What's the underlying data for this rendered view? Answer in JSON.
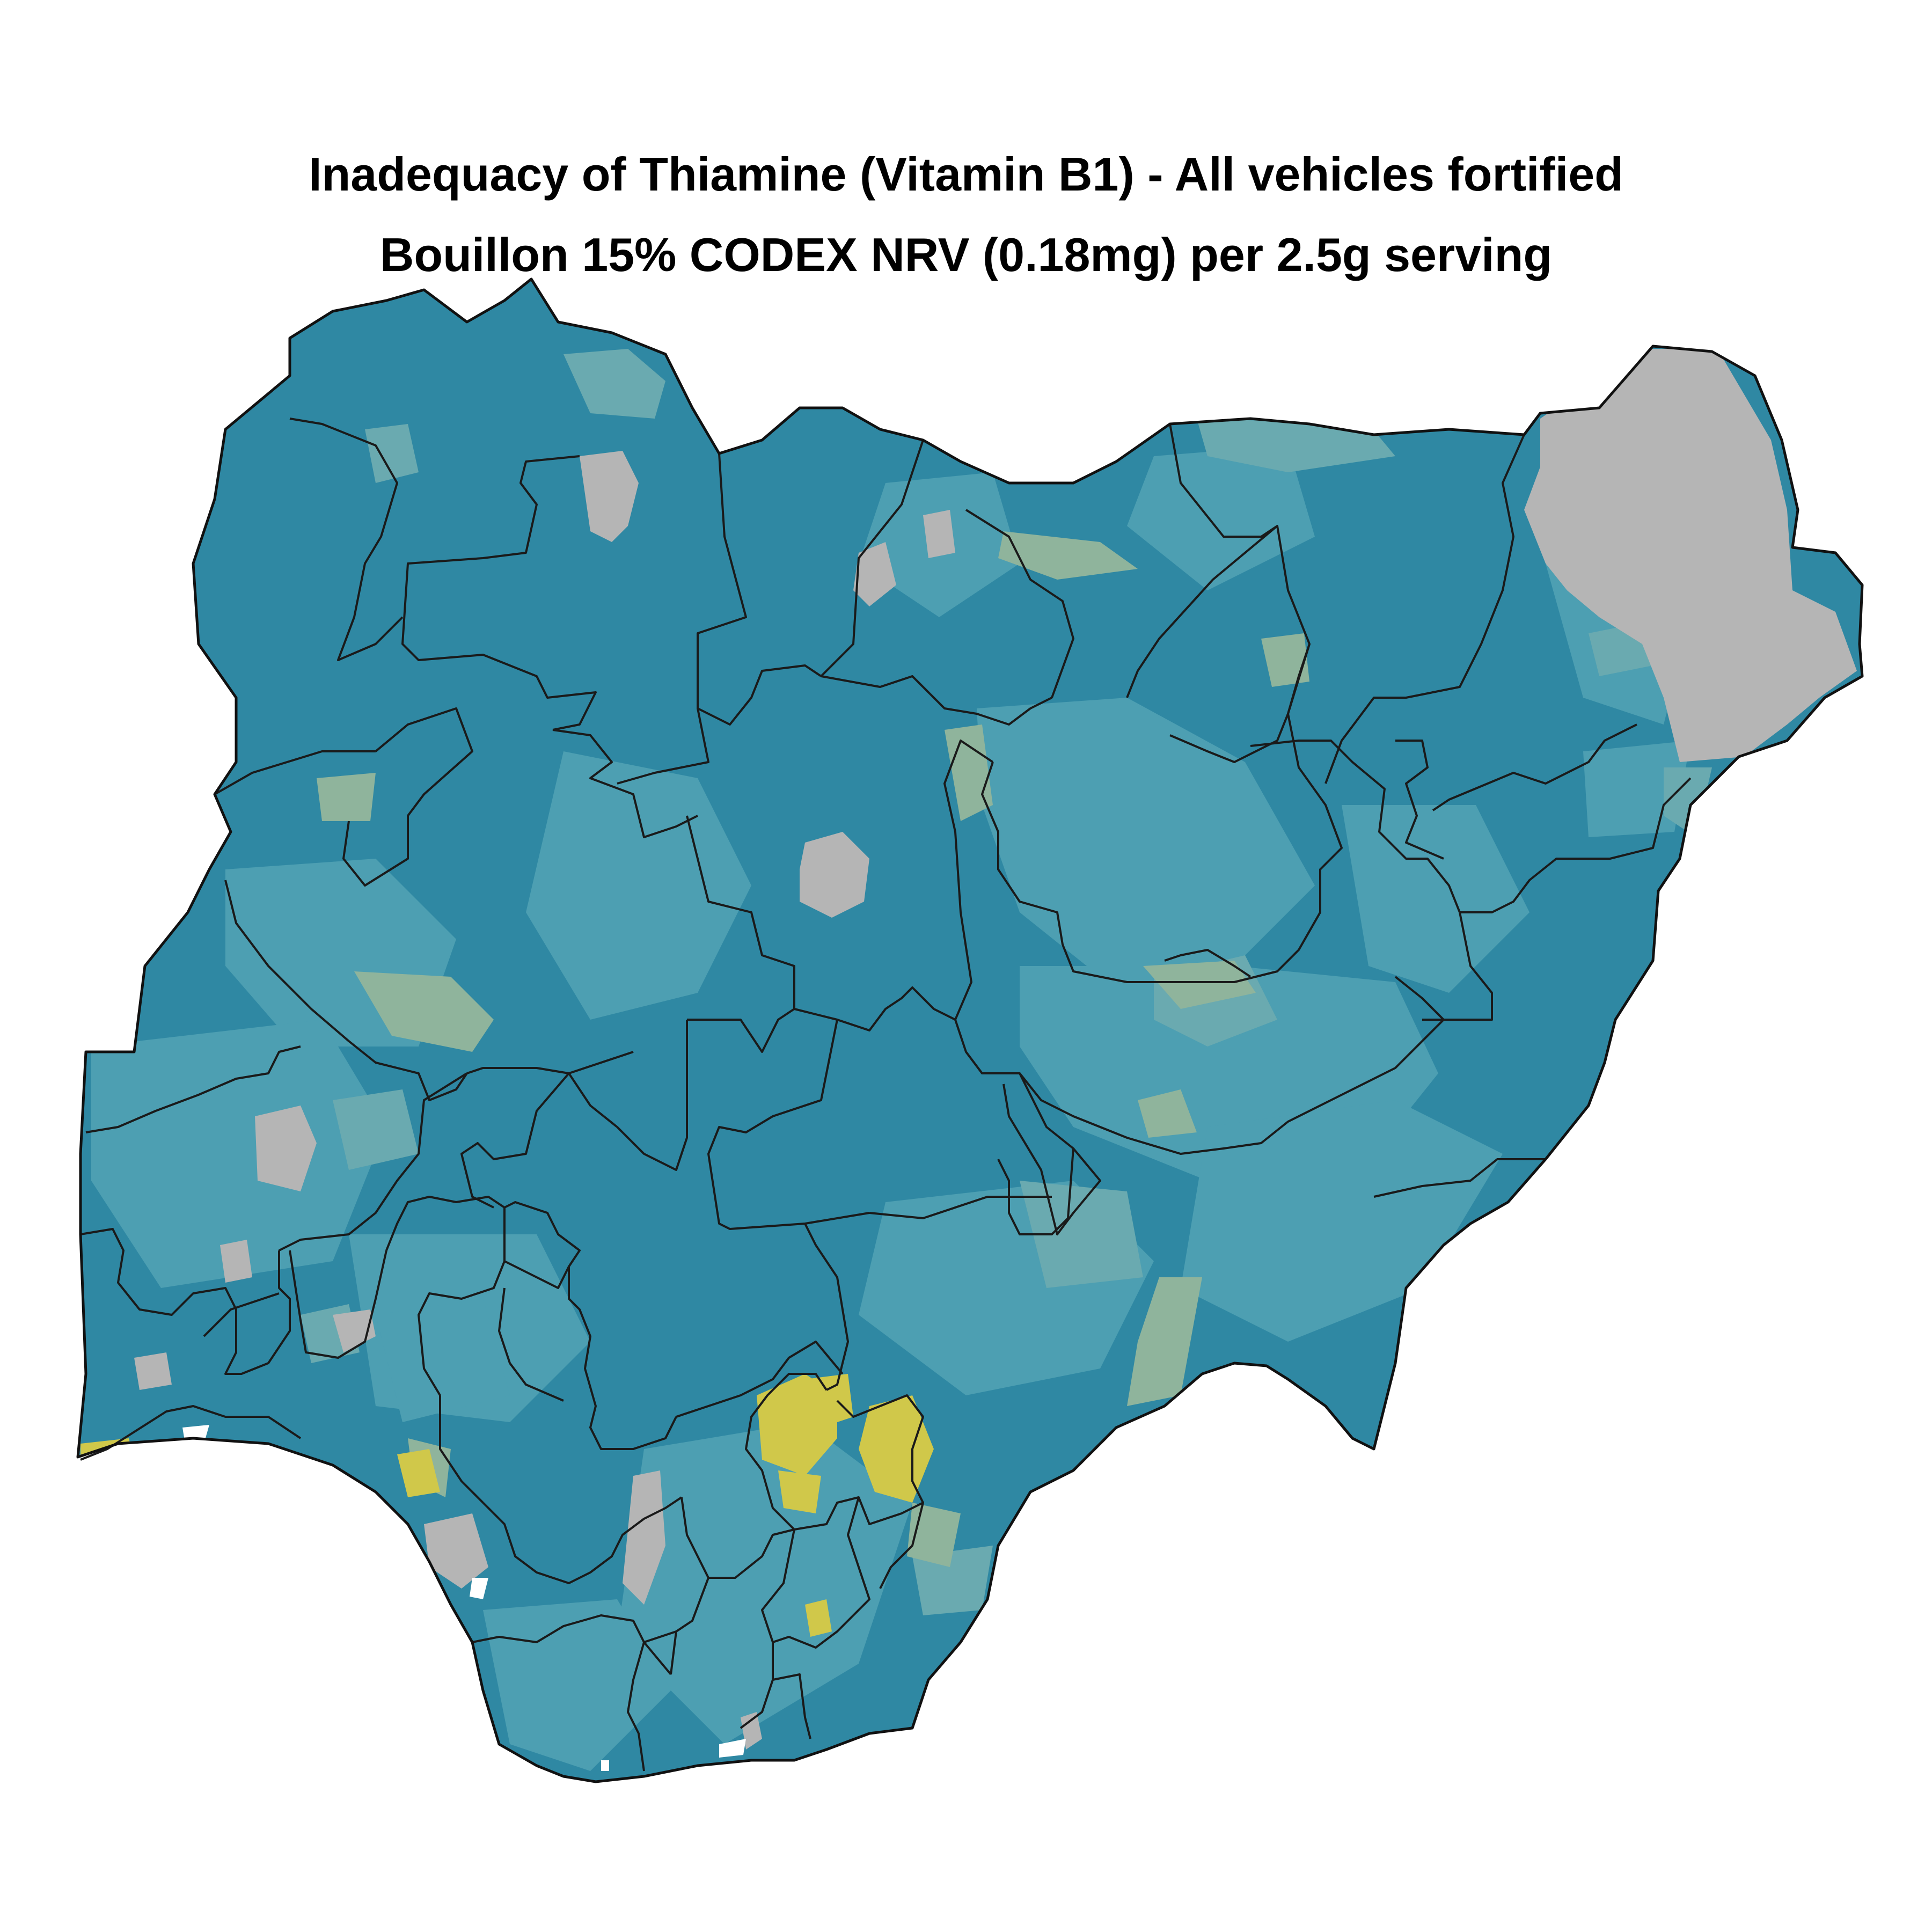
{
  "title": "Inadequacy of Thiamine (Vitamin B1) - All vehicles fortified",
  "subtitle": "Bouillon 15% CODEX NRV (0.18mg) per 2.5g serving",
  "map": {
    "country": "Nigeria",
    "colors": {
      "dominant": "#2f88a3",
      "medium": "#4d9fb2",
      "light": "#6aaab0",
      "pale": "#8fb49c",
      "yellow": "#d0c84a",
      "missing": "#b5b5b5",
      "boundary": "#1a1a1a",
      "background": "#ffffff"
    }
  }
}
